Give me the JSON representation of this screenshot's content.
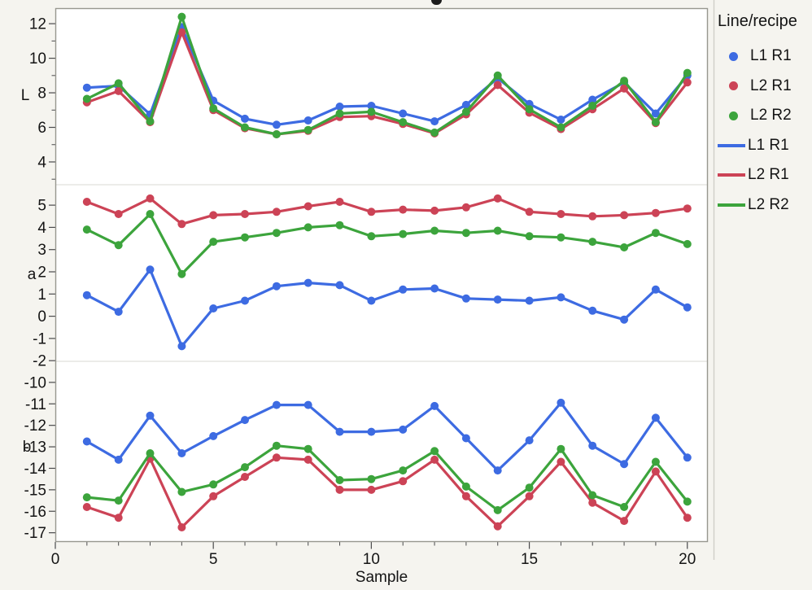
{
  "legend": {
    "title": "Line/recipe",
    "items": [
      {
        "label": "L1 R1",
        "marker": "dot",
        "color": "#3D6BE2"
      },
      {
        "label": "L2 R1",
        "marker": "dot",
        "color": "#CC4356"
      },
      {
        "label": "L2 R2",
        "marker": "dot",
        "color": "#3CA43C"
      },
      {
        "label": "L1 R1",
        "marker": "line",
        "color": "#3D6BE2"
      },
      {
        "label": "L2 R1",
        "marker": "line",
        "color": "#CC4356"
      },
      {
        "label": "L2 R2",
        "marker": "line",
        "color": "#3CA43C"
      }
    ]
  },
  "chart_data": {
    "type": "line",
    "xlabel": "Sample",
    "x": [
      1,
      2,
      3,
      4,
      5,
      6,
      7,
      8,
      9,
      10,
      11,
      12,
      13,
      14,
      15,
      16,
      17,
      18,
      19,
      20
    ],
    "xlim": [
      0,
      20.65
    ],
    "xticks": [
      0,
      5,
      10,
      15,
      20
    ],
    "xtick_minor_step": 1,
    "legend_position": "right",
    "grid": false,
    "panels": [
      {
        "ylabel": "L",
        "ylim": [
          2.68,
          12.9
        ],
        "yticks": [
          4,
          6,
          8,
          10,
          12
        ],
        "yticks_minor": [
          3,
          5,
          7,
          9,
          11
        ],
        "series": [
          {
            "name": "L1 R1",
            "color": "#3D6BE2",
            "values": [
              8.3,
              8.4,
              6.75,
              11.8,
              7.55,
              6.5,
              6.15,
              6.4,
              7.2,
              7.25,
              6.8,
              6.35,
              7.3,
              8.85,
              7.35,
              6.45,
              7.6,
              8.6,
              6.8,
              9.0
            ]
          },
          {
            "name": "L2 R1",
            "color": "#CC4356",
            "values": [
              7.45,
              8.1,
              6.3,
              11.5,
              7.0,
              5.95,
              5.6,
              5.8,
              6.6,
              6.65,
              6.2,
              5.65,
              6.75,
              8.45,
              6.85,
              5.9,
              7.05,
              8.25,
              6.25,
              8.6
            ]
          },
          {
            "name": "L2 R2",
            "color": "#3CA43C",
            "values": [
              7.65,
              8.55,
              6.35,
              12.4,
              7.1,
              6.0,
              5.6,
              5.85,
              6.8,
              6.9,
              6.3,
              5.7,
              6.9,
              9.0,
              7.05,
              6.0,
              7.25,
              8.7,
              6.3,
              9.15
            ]
          }
        ]
      },
      {
        "ylabel": "a",
        "ylim": [
          -2.03,
          5.92
        ],
        "yticks": [
          5,
          4,
          3,
          2,
          1,
          0,
          -1,
          -2
        ],
        "yticks_minor": [],
        "series": [
          {
            "name": "L1 R1",
            "color": "#3D6BE2",
            "values": [
              0.95,
              0.2,
              2.1,
              -1.35,
              0.35,
              0.7,
              1.35,
              1.5,
              1.4,
              0.7,
              1.2,
              1.25,
              0.8,
              0.75,
              0.7,
              0.85,
              0.25,
              -0.15,
              1.2,
              0.4
            ]
          },
          {
            "name": "L2 R1",
            "color": "#CC4356",
            "values": [
              5.15,
              4.6,
              5.3,
              4.15,
              4.55,
              4.6,
              4.7,
              4.95,
              5.15,
              4.7,
              4.8,
              4.75,
              4.9,
              5.3,
              4.7,
              4.6,
              4.5,
              4.55,
              4.65,
              4.85
            ]
          },
          {
            "name": "L2 R2",
            "color": "#3CA43C",
            "values": [
              3.9,
              3.2,
              4.6,
              1.9,
              3.35,
              3.55,
              3.75,
              4.0,
              4.1,
              3.6,
              3.7,
              3.85,
              3.75,
              3.85,
              3.6,
              3.55,
              3.35,
              3.1,
              3.75,
              3.25
            ]
          }
        ]
      },
      {
        "ylabel": "b",
        "ylim": [
          -17.43,
          -9.02
        ],
        "yticks": [
          -10,
          -11,
          -12,
          -13,
          -14,
          -15,
          -16,
          -17
        ],
        "yticks_minor": [],
        "series": [
          {
            "name": "L1 R1",
            "color": "#3D6BE2",
            "values": [
              -12.75,
              -13.6,
              -11.55,
              -13.3,
              -12.5,
              -11.75,
              -11.05,
              -11.05,
              -12.3,
              -12.3,
              -12.2,
              -11.1,
              -12.6,
              -14.1,
              -12.7,
              -10.95,
              -12.95,
              -13.8,
              -11.65,
              -13.5
            ]
          },
          {
            "name": "L2 R1",
            "color": "#CC4356",
            "values": [
              -15.8,
              -16.3,
              -13.55,
              -16.75,
              -15.3,
              -14.4,
              -13.5,
              -13.6,
              -15.0,
              -15.0,
              -14.6,
              -13.6,
              -15.3,
              -16.7,
              -15.3,
              -13.7,
              -15.6,
              -16.45,
              -14.15,
              -16.3
            ]
          },
          {
            "name": "L2 R2",
            "color": "#3CA43C",
            "values": [
              -15.35,
              -15.5,
              -13.3,
              -15.1,
              -14.75,
              -13.95,
              -12.95,
              -13.1,
              -14.55,
              -14.5,
              -14.1,
              -13.2,
              -14.85,
              -15.95,
              -14.9,
              -13.1,
              -15.25,
              -15.8,
              -13.7,
              -15.55
            ]
          }
        ]
      }
    ]
  }
}
